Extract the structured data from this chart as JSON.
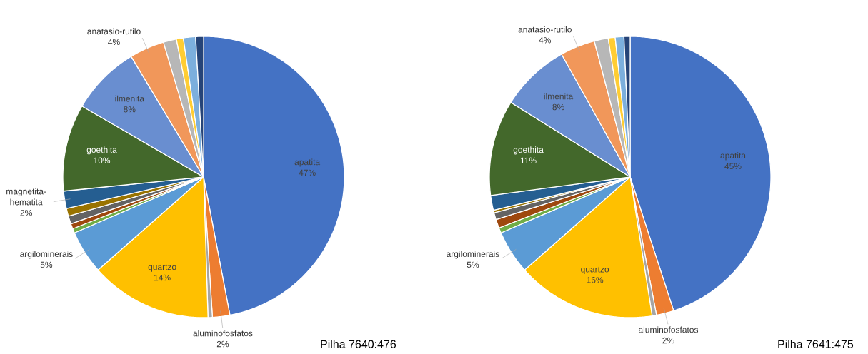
{
  "chart_data": [
    {
      "type": "pie",
      "title": "Pilha 7640:476",
      "categories": [
        "apatita",
        "aluminofosfatos",
        null,
        "quartzo",
        "argilominerais",
        null,
        null,
        null,
        null,
        "magnetita-hematita",
        "goethita",
        "ilmenita",
        "anatasio-rutilo",
        null,
        null,
        null,
        null
      ],
      "values": [
        47,
        2,
        0.5,
        14,
        5,
        0.5,
        0.6,
        0.9,
        0.9,
        2,
        10,
        8,
        4,
        1.5,
        0.8,
        1.4,
        0.9
      ],
      "value_labels": [
        "47%",
        "2%",
        null,
        "14%",
        "5%",
        null,
        null,
        null,
        null,
        "2%",
        "10%",
        "8%",
        "4%",
        null,
        null,
        null,
        null
      ],
      "colors": [
        "#4472c4",
        "#ed7d31",
        "#a5a5a5",
        "#ffc000",
        "#5b9bd5",
        "#70ad47",
        "#9e480e",
        "#636363",
        "#997300",
        "#255e91",
        "#43682b",
        "#698ed0",
        "#f1975a",
        "#b7b7b7",
        "#ffcd33",
        "#7cafdd",
        "#264478"
      ]
    },
    {
      "type": "pie",
      "title": "Pilha 7641:475",
      "categories": [
        "apatita",
        "aluminofosfatos",
        null,
        "quartzo",
        "argilominerais",
        null,
        null,
        null,
        null,
        null,
        "goethita",
        "ilmenita",
        "anatasio-rutilo",
        null,
        null,
        null,
        null
      ],
      "values": [
        45,
        2,
        0.5,
        16,
        5,
        0.6,
        1.0,
        0.8,
        0.3,
        1.7,
        11,
        8,
        4,
        1.6,
        0.8,
        1.0,
        0.7
      ],
      "value_labels": [
        "45%",
        "2%",
        null,
        "16%",
        "5%",
        null,
        null,
        null,
        null,
        null,
        "11%",
        "8%",
        "4%",
        null,
        null,
        null,
        null
      ],
      "colors": [
        "#4472c4",
        "#ed7d31",
        "#a5a5a5",
        "#ffc000",
        "#5b9bd5",
        "#70ad47",
        "#9e480e",
        "#636363",
        "#997300",
        "#255e91",
        "#43682b",
        "#698ed0",
        "#f1975a",
        "#b7b7b7",
        "#ffcd33",
        "#7cafdd",
        "#264478"
      ]
    }
  ]
}
